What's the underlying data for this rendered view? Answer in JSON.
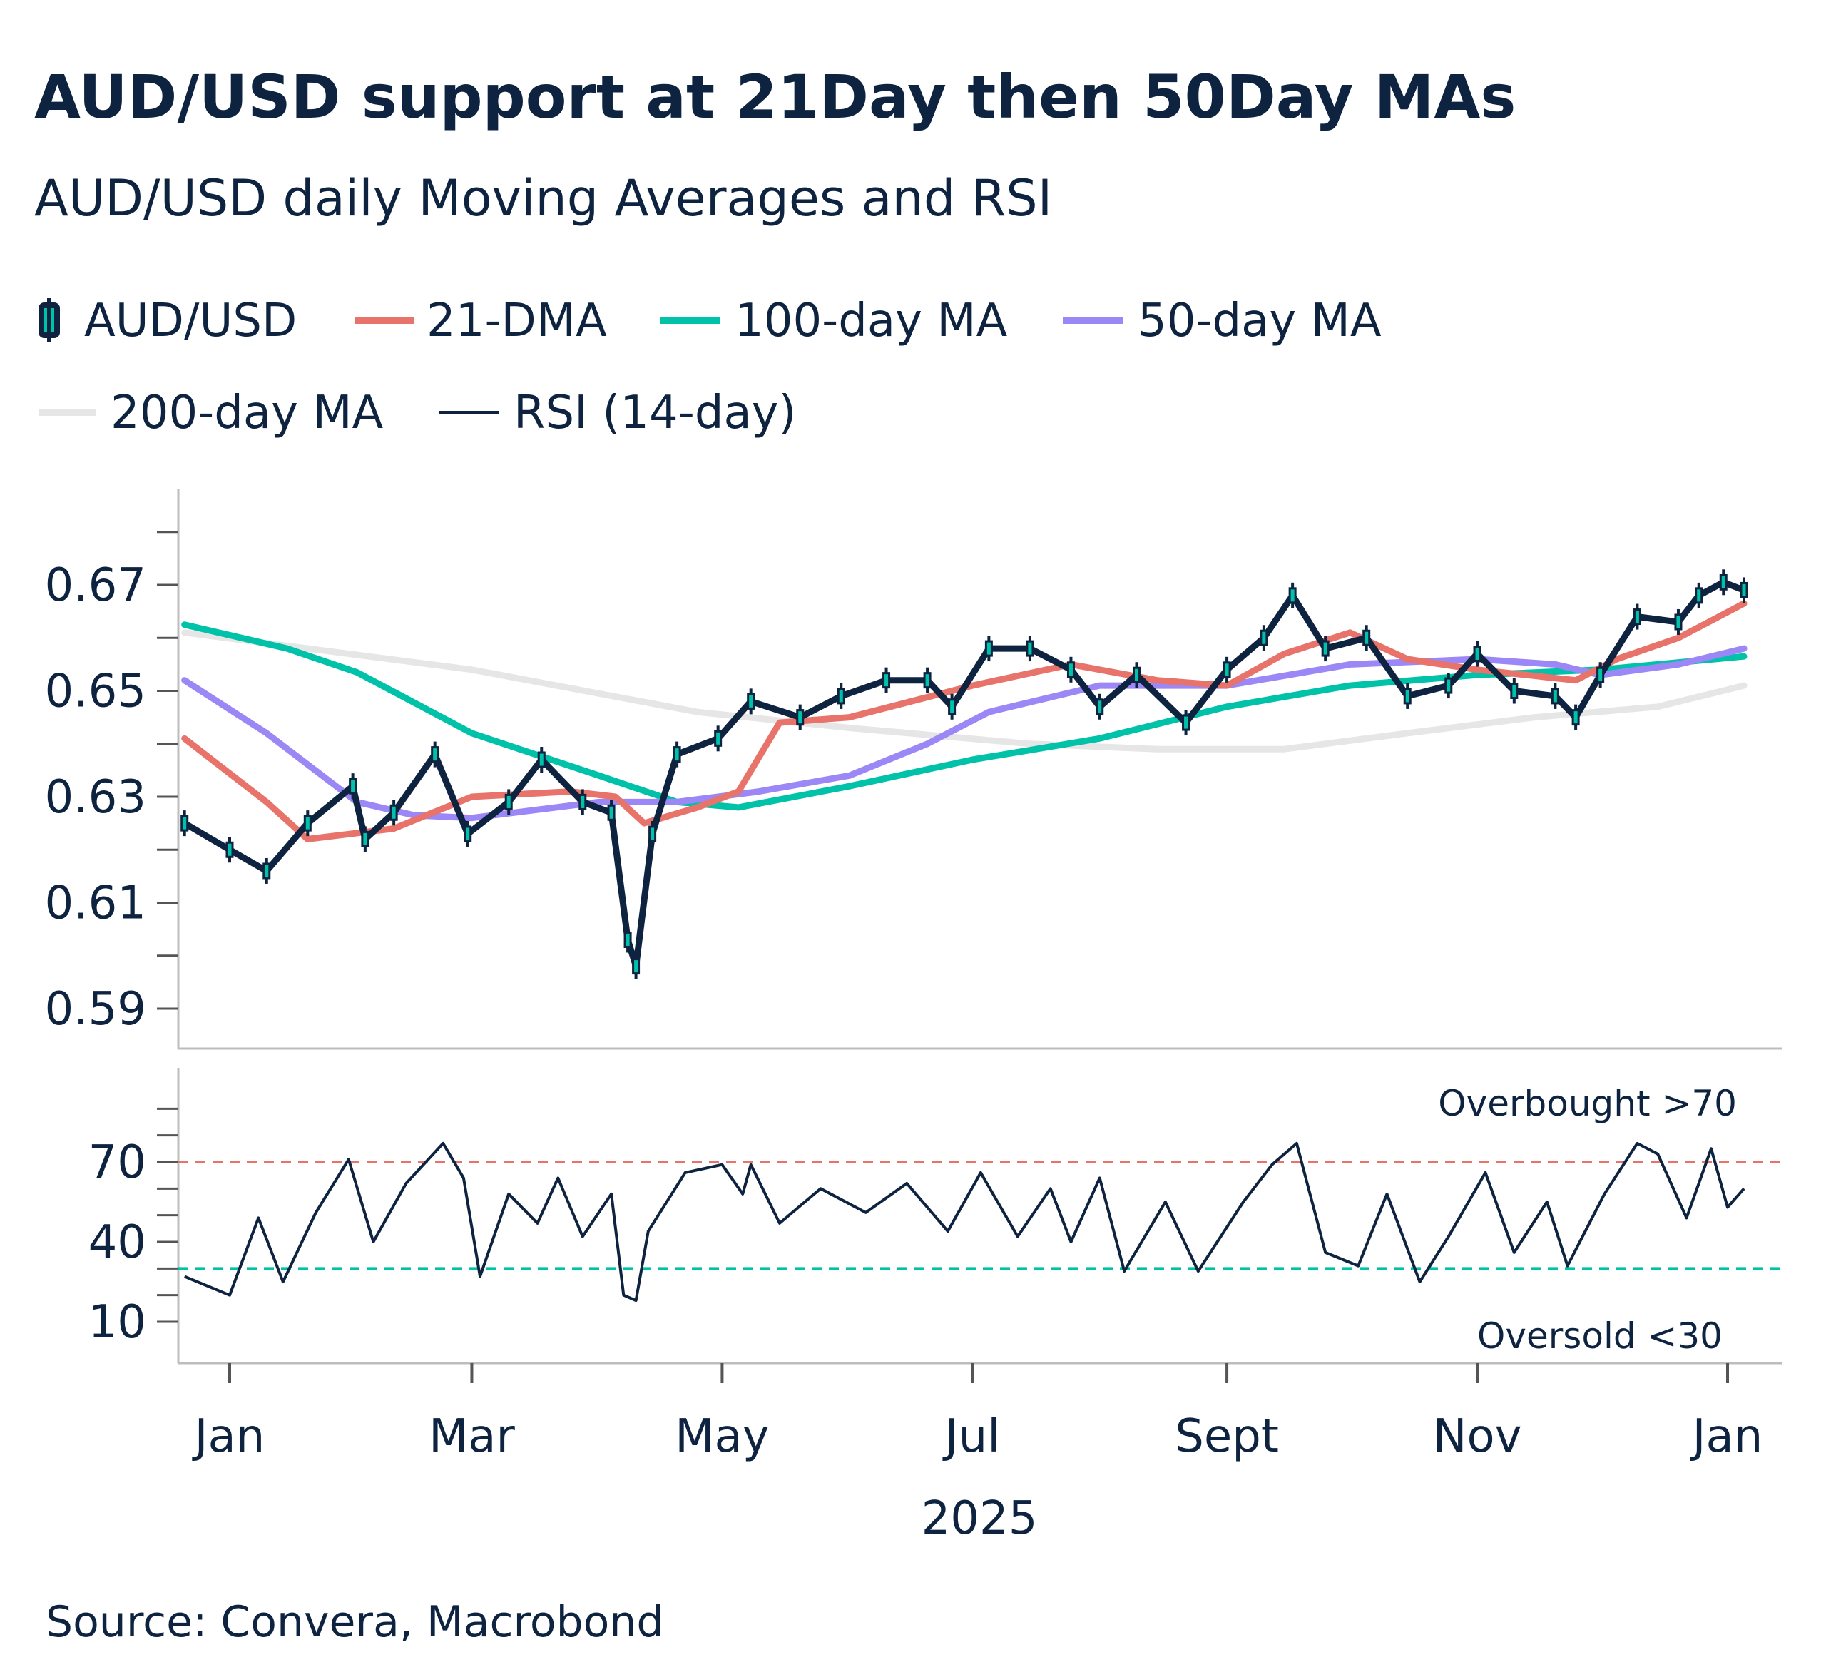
{
  "title": "AUD/USD support at 21Day then 50Day MAs",
  "subtitle": "AUD/USD daily Moving Averages and RSI",
  "source": "Source: Convera, Macrobond",
  "chart_data": [
    {
      "type": "line",
      "panel": "price",
      "ylim": [
        0.58,
        0.68
      ],
      "yticks": [
        "0.67",
        "0.65",
        "0.63",
        "0.61",
        "0.59"
      ],
      "legend": {
        "placement": "top",
        "entries": [
          "AUD/USD",
          "21-DMA",
          "100-day MA",
          "50-day MA",
          "200-day MA",
          "RSI (14-day)"
        ]
      },
      "series": [
        {
          "name": "AUD/USD",
          "style": "candlestick",
          "color": "#0D2340",
          "accent": "#00C2A8",
          "x": [
            "2024-12-21",
            "2025-01-01",
            "2025-01-10",
            "2025-01-20",
            "2025-01-31",
            "2025-02-03",
            "2025-02-10",
            "2025-02-20",
            "2025-02-28",
            "2025-03-10",
            "2025-03-18",
            "2025-03-28",
            "2025-04-04",
            "2025-04-08",
            "2025-04-10",
            "2025-04-14",
            "2025-04-20",
            "2025-04-30",
            "2025-05-08",
            "2025-05-20",
            "2025-05-30",
            "2025-06-10",
            "2025-06-20",
            "2025-06-26",
            "2025-07-05",
            "2025-07-15",
            "2025-07-25",
            "2025-08-01",
            "2025-08-10",
            "2025-08-22",
            "2025-09-01",
            "2025-09-10",
            "2025-09-17",
            "2025-09-25",
            "2025-10-05",
            "2025-10-15",
            "2025-10-25",
            "2025-11-01",
            "2025-11-10",
            "2025-11-20",
            "2025-11-25",
            "2025-12-01",
            "2025-12-10",
            "2025-12-20",
            "2025-12-25",
            "2025-12-31",
            "2026-01-05"
          ],
          "y": [
            0.625,
            0.62,
            0.616,
            0.625,
            0.632,
            0.622,
            0.627,
            0.638,
            0.623,
            0.629,
            0.637,
            0.629,
            0.627,
            0.603,
            0.598,
            0.623,
            0.638,
            0.641,
            0.648,
            0.645,
            0.649,
            0.652,
            0.652,
            0.647,
            0.658,
            0.658,
            0.654,
            0.647,
            0.653,
            0.644,
            0.654,
            0.66,
            0.668,
            0.658,
            0.66,
            0.649,
            0.651,
            0.657,
            0.65,
            0.649,
            0.645,
            0.653,
            0.664,
            0.663,
            0.668,
            0.6705,
            0.669
          ]
        },
        {
          "name": "21-DMA",
          "color": "#E8736A",
          "x": [
            "2024-12-21",
            "2025-01-10",
            "2025-01-20",
            "2025-02-10",
            "2025-03-01",
            "2025-03-25",
            "2025-04-05",
            "2025-04-12",
            "2025-04-25",
            "2025-05-05",
            "2025-05-15",
            "2025-06-01",
            "2025-07-01",
            "2025-07-25",
            "2025-08-15",
            "2025-09-01",
            "2025-09-15",
            "2025-10-01",
            "2025-10-15",
            "2025-11-01",
            "2025-11-25",
            "2025-12-05",
            "2025-12-20",
            "2026-01-05"
          ],
          "y": [
            0.641,
            0.629,
            0.622,
            0.624,
            0.63,
            0.631,
            0.63,
            0.625,
            0.628,
            0.631,
            0.644,
            0.645,
            0.651,
            0.655,
            0.652,
            0.651,
            0.657,
            0.661,
            0.656,
            0.654,
            0.652,
            0.656,
            0.66,
            0.6665
          ]
        },
        {
          "name": "100-day MA",
          "color": "#00C2A8",
          "x": [
            "2024-12-21",
            "2025-01-15",
            "2025-02-01",
            "2025-03-01",
            "2025-04-01",
            "2025-04-20",
            "2025-05-05",
            "2025-06-01",
            "2025-07-01",
            "2025-08-01",
            "2025-09-01",
            "2025-10-01",
            "2025-11-01",
            "2025-12-01",
            "2026-01-05"
          ],
          "y": [
            0.6625,
            0.658,
            0.6535,
            0.642,
            0.634,
            0.629,
            0.628,
            0.632,
            0.637,
            0.641,
            0.647,
            0.651,
            0.653,
            0.654,
            0.6565
          ]
        },
        {
          "name": "50-day MA",
          "color": "#9B87F5",
          "x": [
            "2024-12-21",
            "2025-01-10",
            "2025-02-01",
            "2025-02-15",
            "2025-03-01",
            "2025-04-01",
            "2025-04-20",
            "2025-05-10",
            "2025-06-01",
            "2025-06-20",
            "2025-07-05",
            "2025-08-01",
            "2025-09-01",
            "2025-10-01",
            "2025-11-01",
            "2025-11-20",
            "2025-12-01",
            "2025-12-20",
            "2026-01-05"
          ],
          "y": [
            0.652,
            0.642,
            0.629,
            0.6265,
            0.626,
            0.629,
            0.629,
            0.631,
            0.634,
            0.64,
            0.646,
            0.651,
            0.651,
            0.655,
            0.656,
            0.655,
            0.653,
            0.655,
            0.658
          ]
        },
        {
          "name": "200-day MA",
          "color": "#E6E6E6",
          "x": [
            "2024-12-21",
            "2025-03-01",
            "2025-04-25",
            "2025-06-01",
            "2025-07-15",
            "2025-08-15",
            "2025-09-15",
            "2025-10-15",
            "2025-11-15",
            "2025-12-15",
            "2026-01-05"
          ],
          "y": [
            0.661,
            0.654,
            0.646,
            0.643,
            0.64,
            0.639,
            0.639,
            0.642,
            0.645,
            0.647,
            0.651
          ]
        }
      ]
    },
    {
      "type": "line",
      "panel": "rsi",
      "ylim": [
        0,
        90
      ],
      "yticks": [
        "70",
        "40",
        "10"
      ],
      "xticks": [
        "Jan",
        "Mar",
        "May",
        "Jul",
        "Sept",
        "Nov",
        "Jan"
      ],
      "xlabel": "2025",
      "reference_lines": [
        {
          "value": 70,
          "color": "#E8736A",
          "style": "dashed",
          "label": "Overbought >70"
        },
        {
          "value": 30,
          "color": "#00C2A8",
          "style": "dashed",
          "label": "Oversold <30"
        }
      ],
      "series": [
        {
          "name": "RSI (14-day)",
          "color": "#0D2340",
          "x": [
            "2024-12-21",
            "2025-01-01",
            "2025-01-08",
            "2025-01-14",
            "2025-01-22",
            "2025-01-30",
            "2025-02-05",
            "2025-02-13",
            "2025-02-22",
            "2025-02-27",
            "2025-03-03",
            "2025-03-10",
            "2025-03-17",
            "2025-03-22",
            "2025-03-28",
            "2025-04-04",
            "2025-04-07",
            "2025-04-10",
            "2025-04-13",
            "2025-04-22",
            "2025-05-01",
            "2025-05-06",
            "2025-05-08",
            "2025-05-15",
            "2025-05-25",
            "2025-06-05",
            "2025-06-15",
            "2025-06-25",
            "2025-07-03",
            "2025-07-12",
            "2025-07-20",
            "2025-07-25",
            "2025-08-01",
            "2025-08-07",
            "2025-08-17",
            "2025-08-25",
            "2025-09-05",
            "2025-09-12",
            "2025-09-18",
            "2025-09-25",
            "2025-10-03",
            "2025-10-10",
            "2025-10-18",
            "2025-10-25",
            "2025-11-03",
            "2025-11-10",
            "2025-11-18",
            "2025-11-23",
            "2025-12-02",
            "2025-12-10",
            "2025-12-15",
            "2025-12-22",
            "2025-12-28",
            "2026-01-01",
            "2026-01-05"
          ],
          "y": [
            27,
            20,
            49,
            25,
            51,
            71,
            40,
            62,
            77,
            64,
            27,
            58,
            47,
            64,
            42,
            58,
            20,
            18,
            44,
            66,
            69,
            58,
            69,
            47,
            60,
            51,
            62,
            44,
            66,
            42,
            60,
            40,
            64,
            29,
            55,
            29,
            55,
            69,
            77,
            36,
            31,
            58,
            25,
            42,
            66,
            36,
            55,
            31,
            58,
            77,
            73,
            49,
            75,
            53,
            60
          ]
        }
      ]
    }
  ]
}
